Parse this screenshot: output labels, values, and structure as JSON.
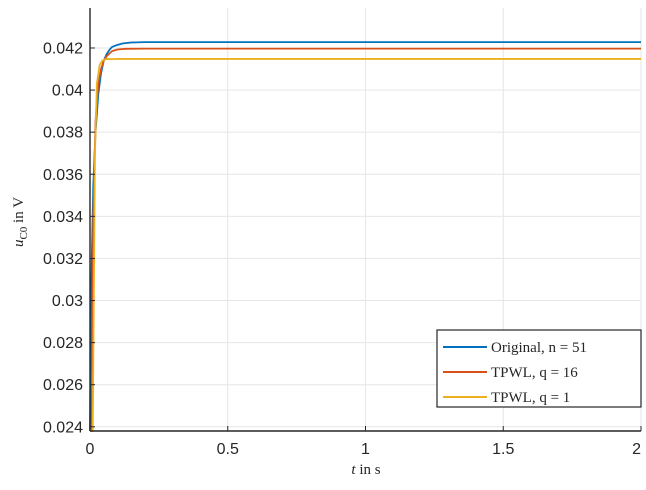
{
  "chart_data": {
    "type": "line",
    "xlabel": {
      "var": "t",
      "rest": " in s"
    },
    "ylabel": {
      "var": "u",
      "sub": "C0",
      "rest": " in V"
    },
    "xlim": [
      0,
      2
    ],
    "ylim": [
      0.0238,
      0.0439
    ],
    "xticks": [
      0,
      0.5,
      1,
      1.5,
      2
    ],
    "xtick_labels": [
      "0",
      "0.5",
      "1",
      "1.5",
      "2"
    ],
    "yticks": [
      0.024,
      0.026,
      0.028,
      0.03,
      0.032,
      0.034,
      0.036,
      0.038,
      0.04,
      0.042
    ],
    "ytick_labels": [
      "0.024",
      "0.026",
      "0.028",
      "0.03",
      "0.032",
      "0.034",
      "0.036",
      "0.038",
      "0.04",
      "0.042"
    ],
    "grid": true,
    "legend_position": "bottom-right",
    "series": [
      {
        "name": "Original, n = 51",
        "color": "#0072bd",
        "x": [
          0,
          0.005,
          0.012,
          0.02,
          0.03,
          0.04,
          0.05,
          0.06,
          0.07,
          0.08,
          0.1,
          0.12,
          0.15,
          0.2,
          0.3,
          0.5,
          1.0,
          1.5,
          2.0
        ],
        "y": [
          0.0238,
          0.031,
          0.0355,
          0.038,
          0.0398,
          0.0408,
          0.0414,
          0.0417,
          0.0419,
          0.04205,
          0.04215,
          0.04222,
          0.04226,
          0.04228,
          0.04228,
          0.04228,
          0.04228,
          0.04228,
          0.04228
        ]
      },
      {
        "name": "TPWL, q = 16",
        "color": "#d95319",
        "x": [
          0,
          0.006,
          0.012,
          0.02,
          0.03,
          0.04,
          0.05,
          0.06,
          0.08,
          0.1,
          0.13,
          0.2,
          0.5,
          1.0,
          1.5,
          2.0
        ],
        "y": [
          0.0238,
          0.0238,
          0.034,
          0.0385,
          0.0403,
          0.041,
          0.0414,
          0.0416,
          0.04185,
          0.04193,
          0.04196,
          0.04197,
          0.04197,
          0.04197,
          0.04197,
          0.04197
        ]
      },
      {
        "name": "TPWL, q = 1",
        "color": "#edb120",
        "x": [
          0,
          0.01,
          0.018,
          0.025,
          0.035,
          0.045,
          0.06,
          0.08,
          0.1,
          0.2,
          0.5,
          1.0,
          1.5,
          2.0
        ],
        "y": [
          0.0238,
          0.0238,
          0.037,
          0.0403,
          0.0412,
          0.0414,
          0.04148,
          0.04147,
          0.04148,
          0.04148,
          0.04148,
          0.04148,
          0.04148,
          0.04148
        ]
      }
    ]
  }
}
